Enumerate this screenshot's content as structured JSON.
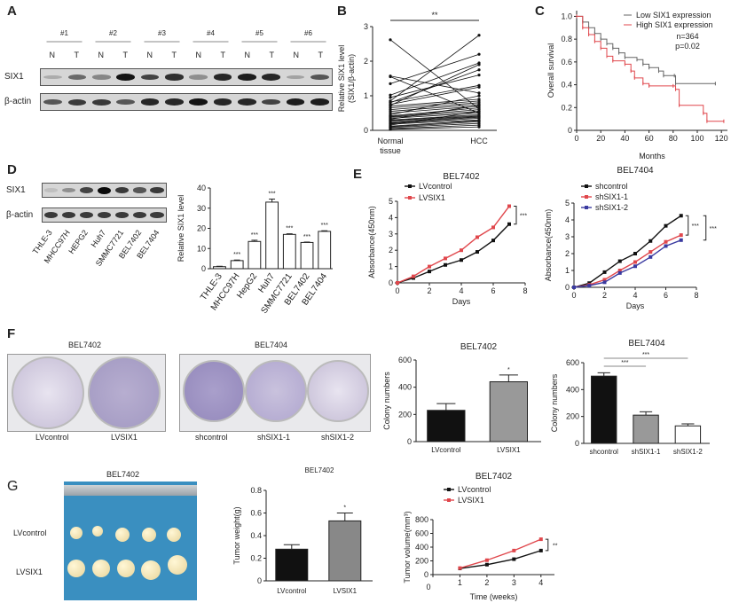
{
  "panel_labels": [
    "A",
    "B",
    "C",
    "D",
    "E",
    "F",
    "G"
  ],
  "A": {
    "groups": [
      "#1",
      "#2",
      "#3",
      "#4",
      "#5",
      "#6"
    ],
    "lanes": [
      "N",
      "T",
      "N",
      "T",
      "N",
      "T",
      "N",
      "T",
      "N",
      "T",
      "N",
      "T"
    ],
    "rows": [
      "SIX1",
      "β-actin"
    ],
    "band_intensity": {
      "SIX1": [
        0.15,
        0.5,
        0.35,
        0.95,
        0.7,
        0.8,
        0.3,
        0.85,
        0.9,
        0.85,
        0.2,
        0.6
      ],
      "beta_actin": [
        0.6,
        0.75,
        0.75,
        0.6,
        0.85,
        0.85,
        0.95,
        0.85,
        0.85,
        0.7,
        0.9,
        0.9
      ]
    }
  },
  "D": {
    "lanes": [
      "THLE-3",
      "MHCC97H",
      "HEPG2",
      "Huh7",
      "SMMC7721",
      "BEL7402",
      "BEL7404"
    ],
    "rows": [
      "SIX1",
      "β-actin"
    ],
    "band_intensity": {
      "SIX1": [
        0.05,
        0.3,
        0.7,
        1.0,
        0.75,
        0.6,
        0.75
      ],
      "beta_actin": [
        0.75,
        0.75,
        0.75,
        0.75,
        0.75,
        0.75,
        0.75
      ]
    }
  },
  "F_photos": {
    "title1": "BEL7402",
    "title2": "BEL7404",
    "labels1": [
      "LVcontrol",
      "LVSIX1"
    ],
    "labels2": [
      "shcontrol",
      "shSIX1-1",
      "shSIX1-2"
    ]
  },
  "G_photo": {
    "title": "BEL7402",
    "rows": [
      "LVcontrol",
      "LVSIX1"
    ]
  },
  "chart_data": [
    {
      "id": "B",
      "type": "line",
      "title": "",
      "ylabel": "Relative SIX1 level\n(SIX1/β-actin)",
      "categories": [
        "Normal tissue",
        "HCC"
      ],
      "ylim": [
        0,
        3
      ],
      "yticks": [
        0,
        1,
        2,
        3
      ],
      "significance": "**",
      "pairs": [
        [
          2.62,
          0.62
        ],
        [
          1.57,
          1.08
        ],
        [
          1.55,
          0.5
        ],
        [
          1.35,
          2.2
        ],
        [
          1.02,
          1.95
        ],
        [
          0.95,
          1.6
        ],
        [
          0.85,
          2.75
        ],
        [
          0.82,
          1.3
        ],
        [
          0.8,
          1.75
        ],
        [
          0.75,
          1.25
        ],
        [
          0.72,
          1.9
        ],
        [
          0.7,
          0.9
        ],
        [
          0.65,
          0.85
        ],
        [
          0.6,
          0.8
        ],
        [
          0.55,
          0.75
        ],
        [
          0.5,
          0.7
        ],
        [
          0.45,
          1.0
        ],
        [
          0.42,
          0.65
        ],
        [
          0.4,
          0.6
        ],
        [
          0.38,
          0.55
        ],
        [
          0.35,
          0.5
        ],
        [
          0.32,
          0.72
        ],
        [
          0.3,
          0.45
        ],
        [
          0.28,
          0.42
        ],
        [
          0.25,
          0.4
        ],
        [
          0.22,
          0.38
        ],
        [
          0.2,
          0.35
        ],
        [
          0.18,
          0.3
        ],
        [
          0.15,
          0.55
        ],
        [
          0.12,
          0.28
        ],
        [
          0.1,
          0.25
        ],
        [
          0.08,
          0.2
        ],
        [
          0.05,
          0.15
        ],
        [
          0.03,
          0.1
        ]
      ]
    },
    {
      "id": "C",
      "type": "line",
      "title": "",
      "xlabel": "Months",
      "ylabel": "Overall survival",
      "xlim": [
        0,
        125
      ],
      "xticks": [
        0,
        20,
        40,
        60,
        80,
        100,
        120
      ],
      "ylim": [
        0,
        1.05
      ],
      "yticks": [
        0,
        0.2,
        0.4,
        0.6,
        0.8,
        1.0
      ],
      "ytick_labels": [
        "0",
        "0.2",
        "0.4",
        "0.6",
        "0.8",
        "1.0"
      ],
      "annotations": [
        "n=364",
        "p=0.02"
      ],
      "legend": "top-right",
      "series": [
        {
          "name": "Low  SIX1 expression",
          "color": "#666666",
          "points": [
            [
              0,
              1
            ],
            [
              5,
              0.95
            ],
            [
              10,
              0.9
            ],
            [
              15,
              0.85
            ],
            [
              20,
              0.8
            ],
            [
              25,
              0.76
            ],
            [
              30,
              0.72
            ],
            [
              35,
              0.68
            ],
            [
              40,
              0.64
            ],
            [
              50,
              0.62
            ],
            [
              55,
              0.58
            ],
            [
              60,
              0.55
            ],
            [
              68,
              0.52
            ],
            [
              72,
              0.48
            ],
            [
              81,
              0.48
            ],
            [
              82,
              0.41
            ],
            [
              115,
              0.41
            ]
          ]
        },
        {
          "name": "High SIX1 expression",
          "color": "#e0474c",
          "points": [
            [
              0,
              1
            ],
            [
              5,
              0.9
            ],
            [
              10,
              0.84
            ],
            [
              15,
              0.78
            ],
            [
              20,
              0.72
            ],
            [
              25,
              0.65
            ],
            [
              30,
              0.61
            ],
            [
              40,
              0.58
            ],
            [
              45,
              0.52
            ],
            [
              48,
              0.46
            ],
            [
              55,
              0.41
            ],
            [
              60,
              0.39
            ],
            [
              80,
              0.39
            ],
            [
              82,
              0.36
            ],
            [
              85,
              0.22
            ],
            [
              105,
              0.15
            ],
            [
              108,
              0.08
            ],
            [
              122,
              0.08
            ]
          ]
        }
      ]
    },
    {
      "id": "D",
      "type": "bar",
      "title": "",
      "ylabel": "Relative SIX1  level",
      "categories": [
        "THLE-3",
        "MHCC97H",
        "HepG2",
        "Huh7",
        "SMMC7721",
        "BEL7402",
        "BEL7404"
      ],
      "values": [
        1,
        4,
        13.5,
        33,
        17,
        13,
        18.5
      ],
      "errors": [
        0.2,
        0.3,
        0.6,
        1.5,
        0.3,
        0.2,
        0.3
      ],
      "labels": [
        "",
        "***",
        "***",
        "***",
        "***",
        "***",
        "***"
      ],
      "ylim": [
        0,
        40
      ],
      "yticks": [
        0,
        10,
        20,
        30,
        40
      ],
      "fill": "#ffffff"
    },
    {
      "id": "E1",
      "type": "line",
      "title": "BEL7402",
      "xlabel": "Days",
      "ylabel": "Absorbance(450nm)",
      "xlim": [
        0,
        8
      ],
      "xticks": [
        0,
        2,
        4,
        6,
        8
      ],
      "ylim": [
        0,
        5
      ],
      "yticks": [
        0,
        1,
        2,
        3,
        4,
        5
      ],
      "significance": [
        "***"
      ],
      "x": [
        0,
        1,
        2,
        3,
        4,
        5,
        6,
        7
      ],
      "series": [
        {
          "name": "LVcontrol",
          "color": "#111111",
          "values": [
            0,
            0.3,
            0.7,
            1.1,
            1.4,
            1.9,
            2.6,
            3.6
          ]
        },
        {
          "name": "LVSIX1",
          "color": "#e0474c",
          "values": [
            0,
            0.4,
            1.0,
            1.5,
            2.0,
            2.8,
            3.4,
            4.7
          ]
        }
      ]
    },
    {
      "id": "E2",
      "type": "line",
      "title": "BEL7404",
      "xlabel": "Days",
      "ylabel": "Absorbance(450nm)",
      "xlim": [
        0,
        8
      ],
      "xticks": [
        0,
        2,
        4,
        6,
        8
      ],
      "ylim": [
        0,
        5
      ],
      "yticks": [
        0,
        1,
        2,
        3,
        4,
        5
      ],
      "significance": [
        "***",
        "***"
      ],
      "x": [
        0,
        1,
        2,
        3,
        4,
        5,
        6,
        7
      ],
      "series": [
        {
          "name": "shcontrol",
          "color": "#111111",
          "values": [
            0,
            0.25,
            0.9,
            1.55,
            2.0,
            2.75,
            3.65,
            4.25
          ]
        },
        {
          "name": "shSIX1-1",
          "color": "#e0474c",
          "values": [
            0,
            0.15,
            0.45,
            1.0,
            1.5,
            2.1,
            2.7,
            3.1
          ]
        },
        {
          "name": "shSIX1-2",
          "color": "#3a3aa0",
          "values": [
            0,
            0.1,
            0.3,
            0.85,
            1.25,
            1.8,
            2.45,
            2.8
          ]
        }
      ]
    },
    {
      "id": "F1",
      "type": "bar",
      "title": "BEL7402",
      "ylabel": "Colony numbers",
      "categories": [
        "LVcontrol",
        "LVSIX1"
      ],
      "values": [
        230,
        440
      ],
      "errors": [
        50,
        50
      ],
      "labels": [
        "",
        "*"
      ],
      "ylim": [
        0,
        600
      ],
      "yticks": [
        0,
        200,
        400,
        600
      ],
      "fills": [
        "#111111",
        "#999999"
      ]
    },
    {
      "id": "F2",
      "type": "bar",
      "title": "BEL7404",
      "ylabel": "Colony numbers",
      "categories": [
        "shcontrol",
        "shSIX1-1",
        "shSIX1-2"
      ],
      "values": [
        500,
        210,
        130
      ],
      "errors": [
        25,
        25,
        15
      ],
      "labels": [
        "",
        "",
        ""
      ],
      "brackets": [
        "***",
        "***"
      ],
      "ylim": [
        0,
        600
      ],
      "yticks": [
        0,
        200,
        400,
        600
      ],
      "fills": [
        "#111111",
        "#999999",
        "#ffffff"
      ]
    },
    {
      "id": "G1",
      "type": "bar",
      "title": "BEL7402",
      "ylabel": "Tumor weight(g)",
      "categories": [
        "LVcontrol",
        "LVSIX1"
      ],
      "values": [
        0.28,
        0.53
      ],
      "errors": [
        0.04,
        0.07
      ],
      "labels": [
        "",
        "*"
      ],
      "ylim": [
        0,
        0.8
      ],
      "yticks": [
        0,
        0.2,
        0.4,
        0.6,
        0.8
      ],
      "ytick_labels": [
        "0",
        "0.2",
        "0.4",
        "0.6",
        "0.8"
      ],
      "fills": [
        "#111111",
        "#888888"
      ]
    },
    {
      "id": "G2",
      "type": "line",
      "title": "BEL7402",
      "xlabel": "Time (weeks)",
      "ylabel": "Tumor volume(mm³)",
      "xlim": [
        0,
        4.5
      ],
      "xticks": [
        0,
        1,
        2,
        3,
        4
      ],
      "ylim": [
        0,
        800
      ],
      "yticks": [
        0,
        200,
        400,
        600,
        800
      ],
      "significance": [
        "**"
      ],
      "x": [
        1,
        2,
        3,
        4
      ],
      "series": [
        {
          "name": "LVcontrol",
          "color": "#111111",
          "values": [
            90,
            145,
            225,
            350
          ]
        },
        {
          "name": "LVSIX1",
          "color": "#e0474c",
          "values": [
            95,
            210,
            350,
            515
          ]
        }
      ]
    }
  ]
}
